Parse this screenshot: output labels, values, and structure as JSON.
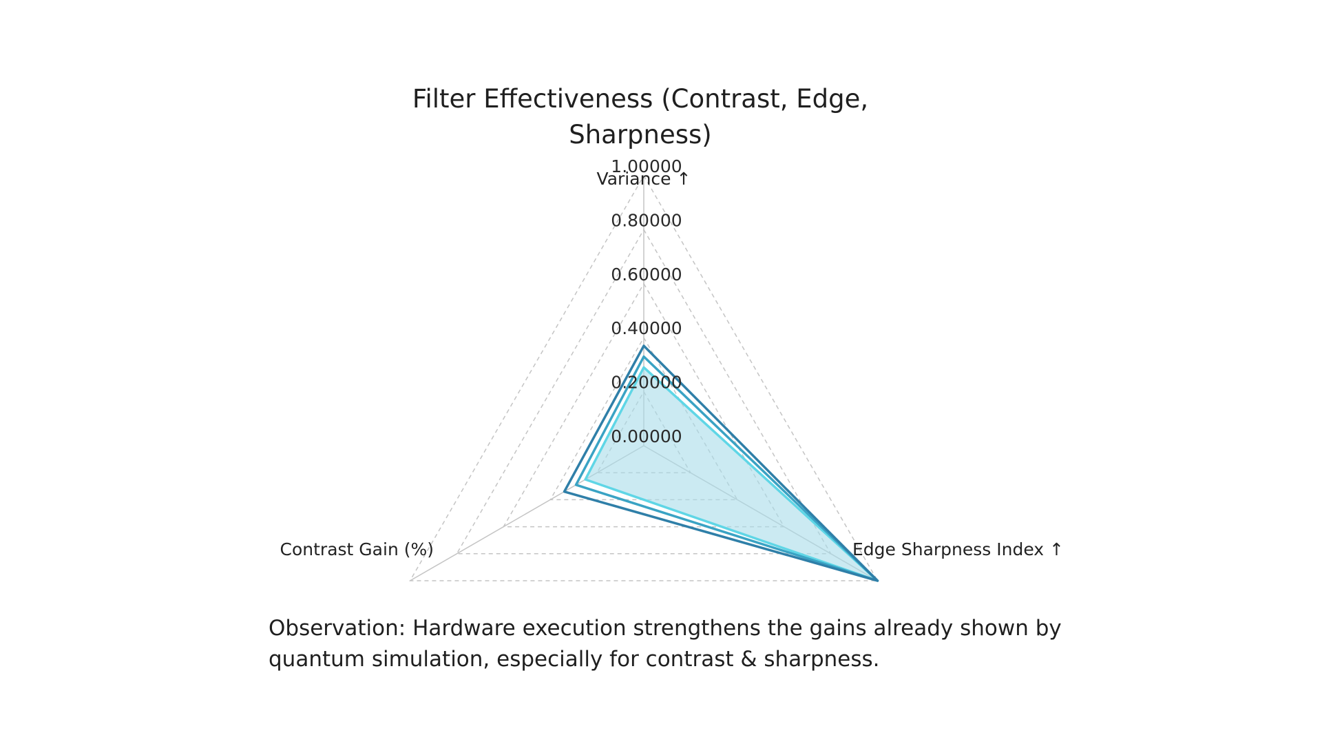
{
  "chart_data": {
    "type": "radar",
    "title": "Filter Effectiveness (Contrast, Edge, Sharpness)",
    "axes": [
      "Variance ↑",
      "Edge Sharpness Index ↑",
      "Contrast Gain (%)"
    ],
    "radial_ticks": [
      "0.00000",
      "0.20000",
      "0.40000",
      "0.60000",
      "0.80000",
      "1.00000"
    ],
    "radial_range": [
      0,
      1
    ],
    "grid": true,
    "grid_style": "dashed",
    "series": [
      {
        "values": [
          0.29,
          1.0,
          0.25
        ],
        "color": "#5fd6e6"
      },
      {
        "values": [
          0.33,
          1.0,
          0.29
        ],
        "color": "#3aa3c4"
      },
      {
        "values": [
          0.37,
          1.0,
          0.34
        ],
        "color": "#2f7fa8"
      }
    ],
    "fill_color": "#a9dcea"
  },
  "observation": "Observation: Hardware execution strengthens the gains already shown by quantum simulation, especially for contrast & sharpness."
}
